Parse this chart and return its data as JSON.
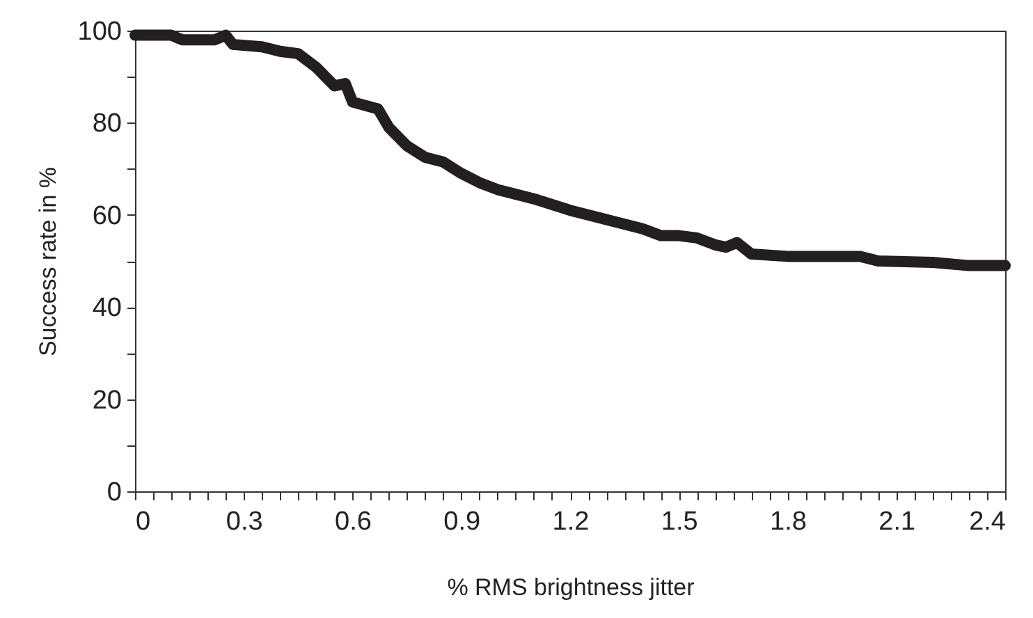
{
  "chart_data": {
    "type": "line",
    "xlabel": "% RMS brightness jitter",
    "ylabel": "Success rate in %",
    "x": [
      0,
      0.1,
      0.13,
      0.22,
      0.25,
      0.27,
      0.35,
      0.4,
      0.45,
      0.5,
      0.55,
      0.58,
      0.6,
      0.67,
      0.7,
      0.75,
      0.8,
      0.85,
      0.9,
      0.95,
      1.0,
      1.1,
      1.2,
      1.3,
      1.4,
      1.45,
      1.5,
      1.55,
      1.6,
      1.63,
      1.66,
      1.7,
      1.8,
      1.9,
      2.0,
      2.05,
      2.2,
      2.3,
      2.4
    ],
    "series": [
      {
        "color": "#231f20",
        "values": [
          99,
          99,
          98,
          98,
          99,
          97,
          96.5,
          95.5,
          95,
          92,
          88,
          88.5,
          84.5,
          83,
          79,
          75,
          72.5,
          71.5,
          69,
          67,
          65.5,
          63.5,
          61,
          59,
          57,
          55.5,
          55.5,
          55,
          53.5,
          53,
          54,
          51.5,
          51,
          51,
          51,
          50,
          49.7,
          49,
          49
        ]
      }
    ],
    "xlim": [
      0,
      2.4
    ],
    "ylim": [
      0,
      100
    ],
    "xticks": [
      0,
      {
        "value": 0.05,
        "label": null
      },
      {
        "value": 0.1,
        "label": null
      },
      {
        "value": 0.15,
        "label": null
      },
      {
        "value": 0.2,
        "label": null
      },
      {
        "value": 0.25,
        "label": null
      },
      0.3,
      {
        "value": 0.35,
        "label": null
      },
      {
        "value": 0.4,
        "label": null
      },
      {
        "value": 0.45,
        "label": null
      },
      {
        "value": 0.5,
        "label": null
      },
      {
        "value": 0.55,
        "label": null
      },
      0.6,
      {
        "value": 0.65,
        "label": null
      },
      {
        "value": 0.7,
        "label": null
      },
      {
        "value": 0.75,
        "label": null
      },
      {
        "value": 0.8,
        "label": null
      },
      {
        "value": 0.85,
        "label": null
      },
      0.9,
      {
        "value": 0.95,
        "label": null
      },
      {
        "value": 1.0,
        "label": null
      },
      {
        "value": 1.05,
        "label": null
      },
      {
        "value": 1.1,
        "label": null
      },
      {
        "value": 1.15,
        "label": null
      },
      1.2,
      {
        "value": 1.25,
        "label": null
      },
      {
        "value": 1.3,
        "label": null
      },
      {
        "value": 1.35,
        "label": null
      },
      {
        "value": 1.4,
        "label": null
      },
      {
        "value": 1.45,
        "label": null
      },
      1.5,
      {
        "value": 1.55,
        "label": null
      },
      {
        "value": 1.6,
        "label": null
      },
      {
        "value": 1.65,
        "label": null
      },
      {
        "value": 1.7,
        "label": null
      },
      {
        "value": 1.75,
        "label": null
      },
      1.8,
      {
        "value": 1.85,
        "label": null
      },
      {
        "value": 1.9,
        "label": null
      },
      {
        "value": 1.95,
        "label": null
      },
      {
        "value": 2.0,
        "label": null
      },
      {
        "value": 2.05,
        "label": null
      },
      2.1,
      {
        "value": 2.15,
        "label": null
      },
      {
        "value": 2.2,
        "label": null
      },
      {
        "value": 2.25,
        "label": null
      },
      {
        "value": 2.3,
        "label": null
      },
      {
        "value": 2.35,
        "label": null
      },
      2.4
    ],
    "yticks": [
      0,
      {
        "value": 10,
        "label": null
      },
      20,
      {
        "value": 30,
        "label": null
      },
      40,
      {
        "value": 50,
        "label": null
      },
      60,
      {
        "value": 70,
        "label": null
      },
      80,
      {
        "value": 90,
        "label": null
      },
      100
    ],
    "grid": false,
    "line_style": "solid"
  }
}
